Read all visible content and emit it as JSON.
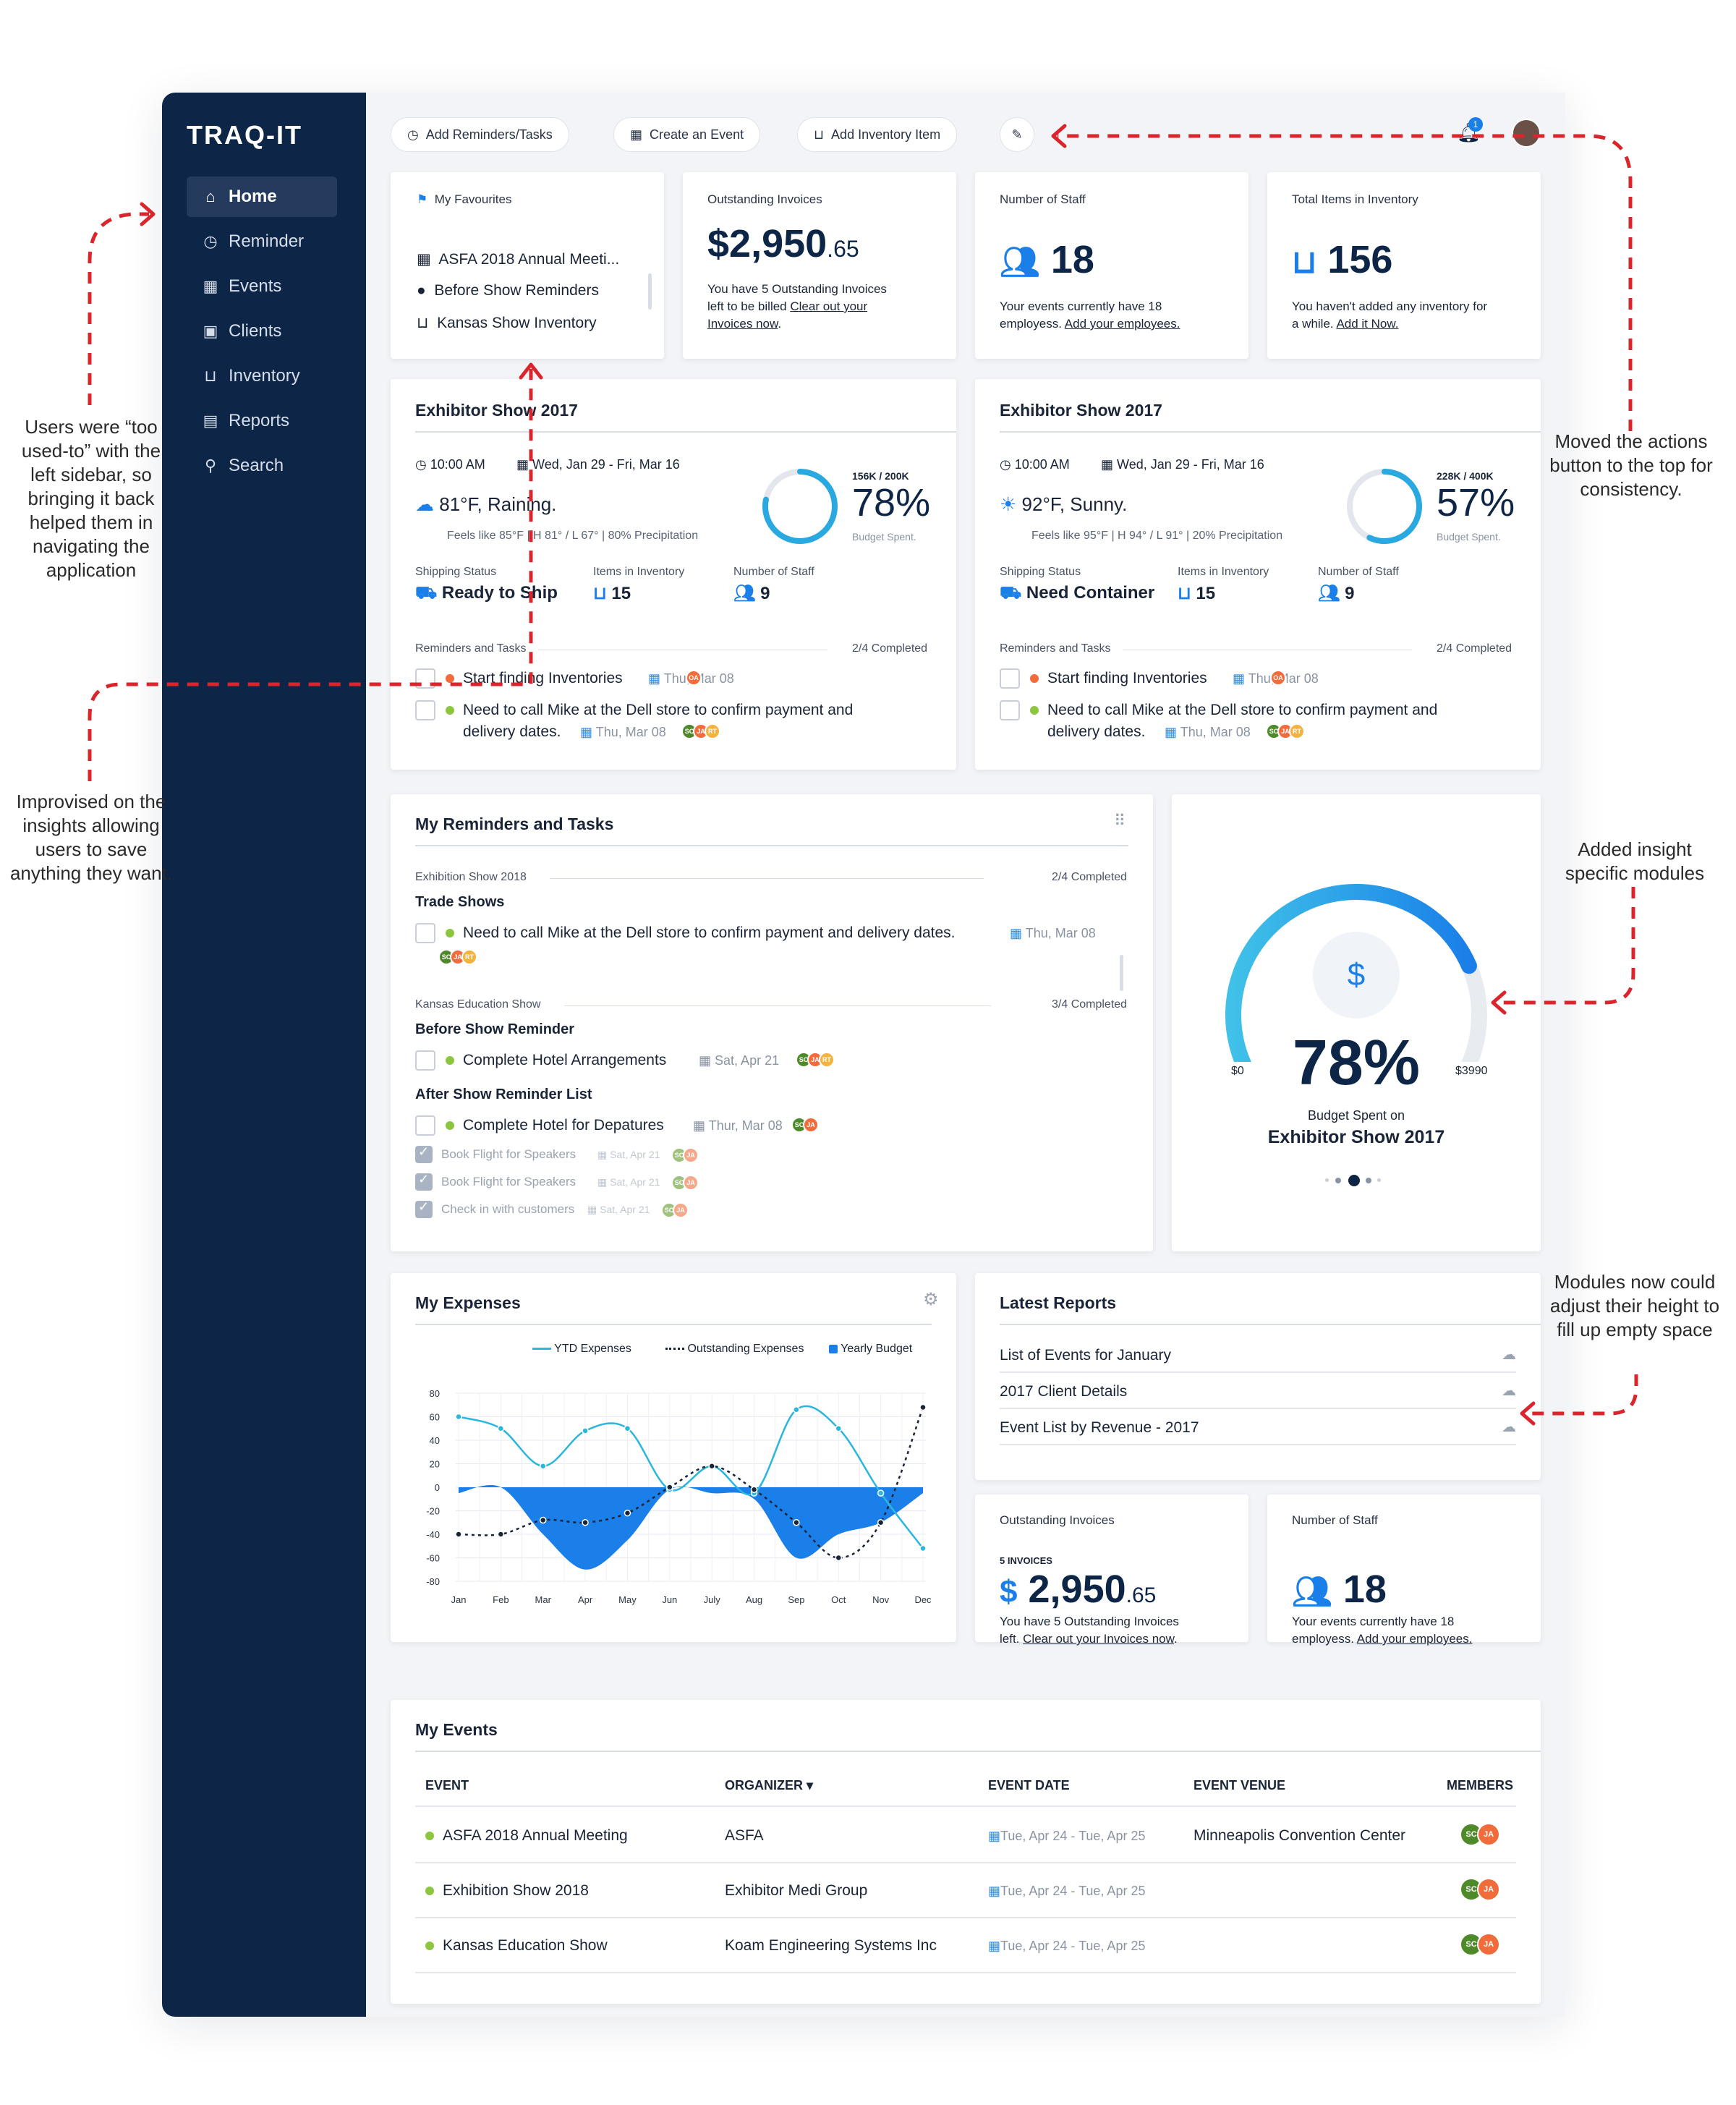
{
  "app": {
    "logo": "TRAQ-IT"
  },
  "sidebar": {
    "items": [
      {
        "label": "Home",
        "icon": "home-icon"
      },
      {
        "label": "Reminder",
        "icon": "clock-icon"
      },
      {
        "label": "Events",
        "icon": "calendar-icon"
      },
      {
        "label": "Clients",
        "icon": "briefcase-icon"
      },
      {
        "label": "Inventory",
        "icon": "inbox-icon"
      },
      {
        "label": "Reports",
        "icon": "document-icon"
      },
      {
        "label": "Search",
        "icon": "search-icon"
      }
    ]
  },
  "toolbar": {
    "add_reminders": "Add Reminders/Tasks",
    "create_event": "Create an Event",
    "add_inventory": "Add Inventory Item",
    "notification_count": "1"
  },
  "favourites": {
    "title": "My Favourites",
    "items": [
      "ASFA 2018 Annual Meeti...",
      "Before Show Reminders",
      "Kansas Show Inventory"
    ]
  },
  "invoices_top": {
    "title": "Outstanding Invoices",
    "amount": "$2,950",
    "cents": ".65",
    "text1": "You have 5 Outstanding Invoices",
    "text2": "left to be billed",
    "link": "Clear out your",
    "link2": "Invoices now",
    "end": "."
  },
  "staff_top": {
    "title": "Number of Staff",
    "value": "18",
    "text": "Your events currently have 18",
    "text2": "employess.",
    "link": "Add your employees."
  },
  "inventory_top": {
    "title": "Total Items in Inventory",
    "value": "156",
    "text": "You haven't added any inventory for",
    "text2": "a while.",
    "link": "Add it Now."
  },
  "show_cards": [
    {
      "title": "Exhibitor Show 2017",
      "time": "10:00 AM",
      "dates": "Wed, Jan 29 - Fri, Mar 16",
      "weather": "81°F, Raining.",
      "feels": "Feels like 85°F",
      "hilo": "H 81° / L 67°",
      "precip": "80% Precipitation",
      "budget_ratio": "156K / 200K",
      "budget_pct": "78%",
      "budget_fill": 0.78,
      "budget_label": "Budget Spent.",
      "shipping_label": "Shipping Status",
      "shipping_value": "Ready to Ship",
      "inventory_label": "Items in Inventory",
      "inventory_value": "15",
      "staff_label": "Number of Staff",
      "staff_value": "9",
      "reminders_label": "Reminders and Tasks",
      "completed": "2/4 Completed",
      "task1": "Start finding Inventories",
      "task1_date": "Thu, Mar 08",
      "task2a": "Need to call Mike at the Dell store to confirm payment and",
      "task2b": "delivery dates.",
      "task2_date": "Thu, Mar 08"
    },
    {
      "title": "Exhibitor Show 2017",
      "time": "10:00 AM",
      "dates": "Wed, Jan 29 - Fri, Mar 16",
      "weather": "92°F, Sunny.",
      "feels": "Feels like 95°F",
      "hilo": "H 94° / L 91°",
      "precip": "20% Precipitation",
      "budget_ratio": "228K / 400K",
      "budget_pct": "57%",
      "budget_fill": 0.57,
      "budget_label": "Budget Spent.",
      "shipping_label": "Shipping Status",
      "shipping_value": "Need Container",
      "inventory_label": "Items in Inventory",
      "inventory_value": "15",
      "staff_label": "Number of Staff",
      "staff_value": "9",
      "reminders_label": "Reminders and Tasks",
      "completed": "2/4 Completed",
      "task1": "Start finding Inventories",
      "task1_date": "Thu, Mar 08",
      "task2a": "Need to call Mike at the Dell store to confirm payment and",
      "task2b": "delivery dates.",
      "task2_date": "Thu, Mar 08"
    }
  ],
  "reminders": {
    "title": "My Reminders and Tasks",
    "group1_label": "Exhibition Show 2018",
    "group1_completed": "2/4 Completed",
    "group1_sub": "Trade Shows",
    "group1_task": "Need to call Mike at the Dell store to confirm payment and delivery dates.",
    "group1_date": "Thu, Mar 08",
    "group2_label": "Kansas Education Show",
    "group2_completed": "3/4 Completed",
    "group2_sub": "Before Show Reminder",
    "group2_task": "Complete Hotel Arrangements",
    "group2_date": "Sat, Apr 21",
    "group3_sub": "After Show Reminder List",
    "group3_task": "Complete Hotel for Depatures",
    "group3_date": "Thur, Mar 08",
    "done_tasks": [
      {
        "text": "Book Flight for Speakers",
        "date": "Sat, Apr 21"
      },
      {
        "text": "Book Flight for Speakers",
        "date": "Sat, Apr 21"
      },
      {
        "text": "Check in with customers",
        "date": "Sat, Apr 21"
      }
    ]
  },
  "budget_gauge": {
    "pct": "78%",
    "fill": 0.78,
    "min": "$0",
    "max": "$3990",
    "caption": "Budget Spent on",
    "show": "Exhibitor Show 2017"
  },
  "expenses": {
    "title": "My Expenses",
    "legend": [
      "YTD Expenses",
      "Outstanding Expenses",
      "Yearly Budget"
    ]
  },
  "chart_data": {
    "type": "line",
    "categories": [
      "Jan",
      "Feb",
      "Mar",
      "Apr",
      "May",
      "Jun",
      "July",
      "Aug",
      "Sep",
      "Oct",
      "Nov",
      "Dec"
    ],
    "ylim": [
      -80,
      80
    ],
    "yticks": [
      80,
      60,
      40,
      20,
      0,
      -20,
      -40,
      -60,
      -80
    ],
    "series": [
      {
        "name": "YTD Expenses",
        "values": [
          60,
          50,
          18,
          48,
          50,
          -2,
          18,
          -5,
          66,
          50,
          -5,
          -52
        ]
      },
      {
        "name": "Outstanding Expenses",
        "values": [
          -40,
          -40,
          -28,
          -30,
          -22,
          0,
          18,
          -2,
          -30,
          -60,
          -30,
          68
        ]
      },
      {
        "name": "Yearly Budget",
        "values": [
          -5,
          0,
          -40,
          -70,
          -45,
          -2,
          -5,
          -10,
          -60,
          -40,
          -30,
          -5
        ]
      }
    ]
  },
  "latest_reports": {
    "title": "Latest Reports",
    "items": [
      "List of Events for January",
      "2017 Client Details",
      "Event List by Revenue - 2017"
    ]
  },
  "invoices_bottom": {
    "title": "Outstanding Invoices",
    "count": "5 INVOICES",
    "amount": "2,950",
    "cents": ".65",
    "text1": "You have 5 Outstanding Invoices",
    "text2": "left.",
    "link": "Clear out your Invoices now",
    "end": "."
  },
  "staff_bottom": {
    "title": "Number of Staff",
    "value": "18",
    "text": "Your events currently have 18",
    "text2": "employess.",
    "link": "Add your employees."
  },
  "events": {
    "title": "My Events",
    "headers": [
      "EVENT",
      "ORGANIZER",
      "EVENT DATE",
      "EVENT VENUE",
      "MEMBERS"
    ],
    "rows": [
      {
        "event": "ASFA 2018 Annual Meeting",
        "organizer": "ASFA",
        "date": "Tue, Apr 24 - Tue, Apr 25",
        "venue": "Minneapolis Convention Center"
      },
      {
        "event": "Exhibition Show 2018",
        "organizer": "Exhibitor Medi Group",
        "date": "Tue, Apr 24 - Tue, Apr 25",
        "venue": ""
      },
      {
        "event": "Kansas Education Show",
        "organizer": "Koam Engineering Systems Inc",
        "date": "Tue, Apr 24 - Tue, Apr 25",
        "venue": ""
      }
    ]
  },
  "avatars": {
    "sc": "SC",
    "ja": "JA",
    "oa": "OA",
    "rt": "RT"
  },
  "annotations": {
    "sidebar": "Users were “too used-to” with the left sidebar, so bringing it back helped them in navigating the application",
    "insights": "Improvised on the insights allowing users to save anything they want.",
    "actions": "Moved the actions button to the top for consistency.",
    "modules": "Added insight specific modules",
    "height": "Modules now could adjust their height to fill up empty space"
  },
  "colors": {
    "sidebar": "#0d2547",
    "accent": "#1a7fe8",
    "accent_light": "#3fc1e8",
    "annotation": "#d9252b",
    "green": "#8cc63f",
    "orange": "#f26b3a"
  }
}
